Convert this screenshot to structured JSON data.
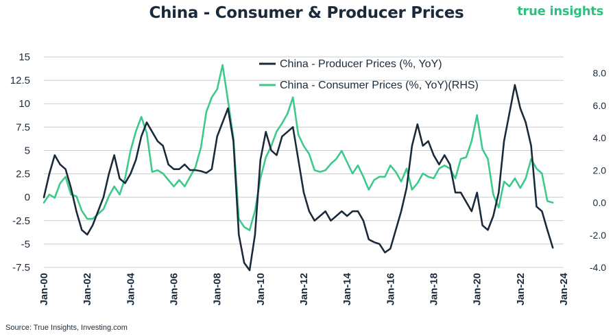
{
  "header": {
    "title": "China - Consumer & Producer Prices",
    "brand": "true insights"
  },
  "footer": {
    "source": "Source: True Insights, Investing.com"
  },
  "colors": {
    "ppi": "#1b2a3a",
    "cpi": "#3cc98a",
    "grid": "#c8ccd2",
    "text": "#1b2a3a",
    "brand": "#2fbf82"
  },
  "chart_data": {
    "type": "line",
    "title": "China - Consumer & Producer Prices",
    "x_tick_labels": [
      "Jan-00",
      "Jan-02",
      "Jan-04",
      "Jan-06",
      "Jan-08",
      "Jan-10",
      "Jan-12",
      "Jan-14",
      "Jan-16",
      "Jan-18",
      "Jan-20",
      "Jan-22",
      "Jan-24"
    ],
    "xlim": [
      2000.0,
      2024.0
    ],
    "y_left": {
      "ylim": [
        -7.5,
        15
      ],
      "ticks": [
        "-7.5",
        "-5",
        "-2.5",
        "0",
        "2.5",
        "5",
        "7.5",
        "10",
        "12.5",
        "15"
      ]
    },
    "y_right": {
      "ylim": [
        -4.0,
        9.0
      ],
      "ticks": [
        "-4.0",
        "-2.0",
        "0.0",
        "2.0",
        "4.0",
        "6.0",
        "8.0"
      ]
    },
    "grid": "horizontal",
    "legend": "top-center",
    "series": [
      {
        "name": "China - Producer Prices (%, YoY)",
        "axis": "left",
        "x": [
          2000.0,
          2000.25,
          2000.5,
          2000.75,
          2001.0,
          2001.25,
          2001.5,
          2001.75,
          2002.0,
          2002.25,
          2002.5,
          2002.75,
          2003.0,
          2003.25,
          2003.5,
          2003.75,
          2004.0,
          2004.25,
          2004.5,
          2004.75,
          2005.0,
          2005.25,
          2005.5,
          2005.75,
          2006.0,
          2006.25,
          2006.5,
          2006.75,
          2007.0,
          2007.25,
          2007.5,
          2007.75,
          2008.0,
          2008.25,
          2008.5,
          2008.75,
          2009.0,
          2009.25,
          2009.5,
          2009.75,
          2010.0,
          2010.25,
          2010.5,
          2010.75,
          2011.0,
          2011.25,
          2011.5,
          2011.75,
          2012.0,
          2012.25,
          2012.5,
          2012.75,
          2013.0,
          2013.25,
          2013.5,
          2013.75,
          2014.0,
          2014.25,
          2014.5,
          2014.75,
          2015.0,
          2015.25,
          2015.5,
          2015.75,
          2016.0,
          2016.25,
          2016.5,
          2016.75,
          2017.0,
          2017.25,
          2017.5,
          2017.75,
          2018.0,
          2018.25,
          2018.5,
          2018.75,
          2019.0,
          2019.25,
          2019.5,
          2019.75,
          2020.0,
          2020.25,
          2020.5,
          2020.75,
          2021.0,
          2021.25,
          2021.5,
          2021.75,
          2022.0,
          2022.25,
          2022.5,
          2022.75,
          2023.0,
          2023.25,
          2023.5
        ],
        "values": [
          0.0,
          2.5,
          4.5,
          3.5,
          3.0,
          1.0,
          -1.5,
          -3.5,
          -4.0,
          -3.0,
          -1.5,
          0.0,
          2.5,
          4.5,
          2.0,
          1.5,
          2.5,
          4.0,
          6.5,
          8.0,
          7.0,
          6.0,
          5.5,
          3.5,
          3.0,
          3.0,
          3.5,
          2.9,
          2.9,
          2.8,
          2.6,
          3.0,
          6.5,
          8.0,
          9.5,
          6.0,
          -4.0,
          -7.0,
          -7.8,
          -4.0,
          4.0,
          7.0,
          5.0,
          4.5,
          6.5,
          7.0,
          7.5,
          4.0,
          0.5,
          -1.5,
          -2.5,
          -2.0,
          -1.5,
          -2.5,
          -2.0,
          -1.5,
          -2.0,
          -1.5,
          -1.5,
          -2.5,
          -4.5,
          -4.8,
          -5.0,
          -5.9,
          -5.5,
          -3.5,
          -1.5,
          1.0,
          5.5,
          7.8,
          5.5,
          6.0,
          4.5,
          3.5,
          4.5,
          3.5,
          0.5,
          0.5,
          -0.5,
          -1.5,
          0.5,
          -3.0,
          -3.5,
          -2.0,
          0.5,
          6.0,
          9.0,
          12.0,
          9.5,
          8.0,
          5.5,
          -1.0,
          -1.5,
          -3.5,
          -5.4
        ]
      },
      {
        "name": "China - Consumer Prices (%, YoY)(RHS)",
        "axis": "right",
        "x": [
          2000.0,
          2000.25,
          2000.5,
          2000.75,
          2001.0,
          2001.25,
          2001.5,
          2001.75,
          2002.0,
          2002.25,
          2002.5,
          2002.75,
          2003.0,
          2003.25,
          2003.5,
          2003.75,
          2004.0,
          2004.25,
          2004.5,
          2004.75,
          2005.0,
          2005.25,
          2005.5,
          2005.75,
          2006.0,
          2006.25,
          2006.5,
          2006.75,
          2007.0,
          2007.25,
          2007.5,
          2007.75,
          2008.0,
          2008.25,
          2008.5,
          2008.75,
          2009.0,
          2009.25,
          2009.5,
          2009.75,
          2010.0,
          2010.25,
          2010.5,
          2010.75,
          2011.0,
          2011.25,
          2011.5,
          2011.75,
          2012.0,
          2012.25,
          2012.5,
          2012.75,
          2013.0,
          2013.25,
          2013.5,
          2013.75,
          2014.0,
          2014.25,
          2014.5,
          2014.75,
          2015.0,
          2015.25,
          2015.5,
          2015.75,
          2016.0,
          2016.25,
          2016.5,
          2016.75,
          2017.0,
          2017.25,
          2017.5,
          2017.75,
          2018.0,
          2018.25,
          2018.5,
          2018.75,
          2019.0,
          2019.25,
          2019.5,
          2019.75,
          2020.0,
          2020.25,
          2020.5,
          2020.75,
          2021.0,
          2021.25,
          2021.5,
          2021.75,
          2022.0,
          2022.25,
          2022.5,
          2022.75,
          2023.0,
          2023.25,
          2023.5
        ],
        "values": [
          0.0,
          0.5,
          0.3,
          1.2,
          1.6,
          0.5,
          0.4,
          -0.5,
          -1.0,
          -1.0,
          -0.7,
          -0.4,
          0.4,
          1.0,
          0.5,
          1.5,
          3.2,
          4.4,
          5.3,
          4.3,
          1.9,
          2.0,
          1.8,
          1.4,
          1.0,
          1.4,
          1.0,
          1.6,
          2.2,
          3.4,
          5.6,
          6.5,
          7.0,
          8.5,
          6.3,
          4.0,
          -1.0,
          -1.5,
          -1.7,
          -0.5,
          1.5,
          2.8,
          3.5,
          4.4,
          4.9,
          5.5,
          6.5,
          4.2,
          3.5,
          3.0,
          2.0,
          1.9,
          2.0,
          2.4,
          2.7,
          3.2,
          2.5,
          1.8,
          2.3,
          1.6,
          0.8,
          1.4,
          1.6,
          1.6,
          2.3,
          1.9,
          1.3,
          2.1,
          0.8,
          1.2,
          1.8,
          1.6,
          1.5,
          2.1,
          2.3,
          2.1,
          1.5,
          2.7,
          2.8,
          3.8,
          5.4,
          3.3,
          2.7,
          0.5,
          -0.3,
          1.3,
          1.0,
          1.5,
          0.9,
          1.5,
          2.7,
          2.1,
          1.8,
          0.1,
          0.0
        ]
      }
    ]
  }
}
